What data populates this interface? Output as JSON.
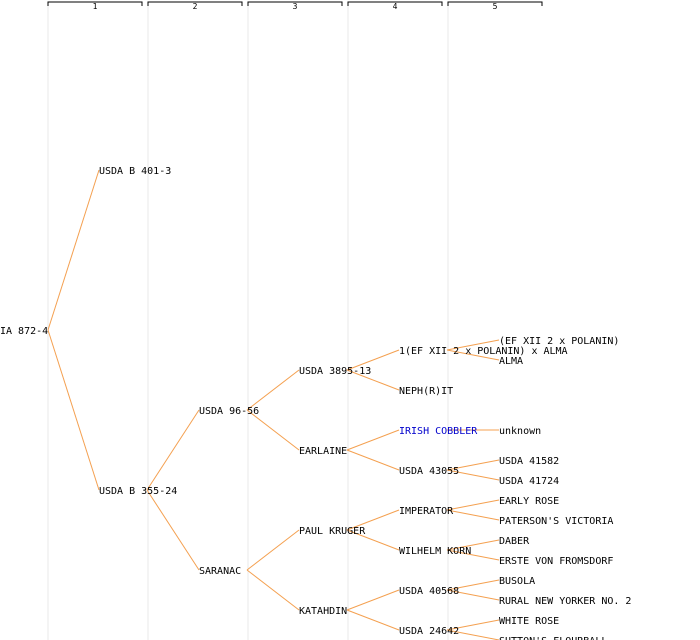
{
  "colors": {
    "edge": "#f4a050",
    "text": "#000000",
    "highlight": "#0000cc",
    "column_guide": "#e8e8e8",
    "bracket": "#000000"
  },
  "generations": [
    "1",
    "2",
    "3",
    "4",
    "5"
  ],
  "tree": {
    "label": "IA 872-4",
    "children": [
      {
        "label": "USDA B 401-3"
      },
      {
        "label": "USDA B 355-24",
        "children": [
          {
            "label": "USDA 96-56",
            "children": [
              {
                "label": "USDA 3895-13",
                "children": [
                  {
                    "label": "1(EF XII 2 x POLANIN) x ALMA",
                    "children": [
                      {
                        "label": "(EF XII 2 x POLANIN)"
                      },
                      {
                        "label": "ALMA"
                      }
                    ]
                  },
                  {
                    "label": "NEPH(R)IT"
                  }
                ]
              },
              {
                "label": "EARLAINE",
                "children": [
                  {
                    "label": "IRISH COBBLER",
                    "highlight": true,
                    "children": [
                      {
                        "label": "unknown"
                      }
                    ]
                  },
                  {
                    "label": "USDA 43055",
                    "children": [
                      {
                        "label": "USDA 41582"
                      },
                      {
                        "label": "USDA 41724"
                      }
                    ]
                  }
                ]
              }
            ]
          },
          {
            "label": "SARANAC",
            "children": [
              {
                "label": "PAUL KRUGER",
                "children": [
                  {
                    "label": "IMPERATOR",
                    "children": [
                      {
                        "label": "EARLY ROSE"
                      },
                      {
                        "label": "PATERSON'S VICTORIA"
                      }
                    ]
                  },
                  {
                    "label": "WILHELM KORN",
                    "children": [
                      {
                        "label": "DABER"
                      },
                      {
                        "label": "ERSTE VON FROMSDORF"
                      }
                    ]
                  }
                ]
              },
              {
                "label": "KATAHDIN",
                "children": [
                  {
                    "label": "USDA 40568",
                    "children": [
                      {
                        "label": "BUSOLA"
                      },
                      {
                        "label": "RURAL NEW YORKER NO. 2"
                      }
                    ]
                  },
                  {
                    "label": "USDA 24642",
                    "children": [
                      {
                        "label": "WHITE ROSE"
                      },
                      {
                        "label": "SUTTON'S FLOURBALL"
                      }
                    ]
                  }
                ]
              }
            ]
          }
        ]
      }
    ]
  }
}
